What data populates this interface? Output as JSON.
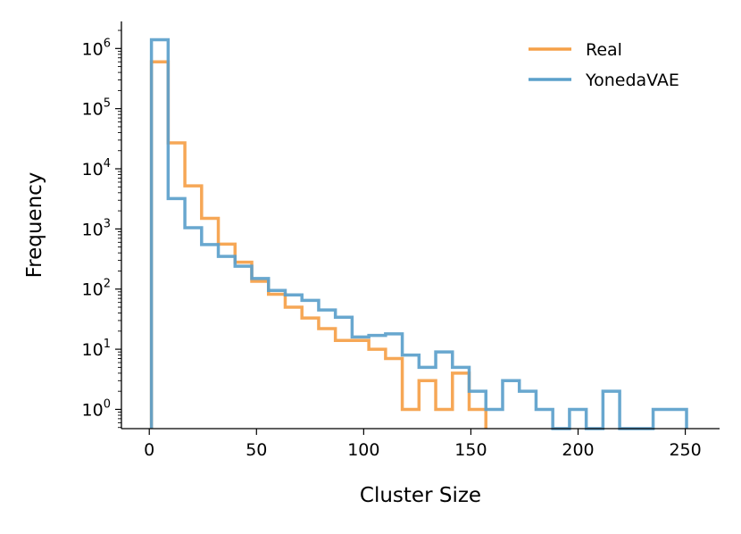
{
  "chart_data": {
    "type": "histogram-step",
    "xlabel": "Cluster Size",
    "ylabel": "Frequency",
    "xlim": [
      -13,
      266
    ],
    "ylim_log10": [
      -0.32,
      6.45
    ],
    "y_scale": "log",
    "xticks": [
      0,
      50,
      100,
      150,
      200,
      250
    ],
    "yticks": [
      {
        "base": "10",
        "exp": "0",
        "value": 1
      },
      {
        "base": "10",
        "exp": "1",
        "value": 10
      },
      {
        "base": "10",
        "exp": "2",
        "value": 100
      },
      {
        "base": "10",
        "exp": "3",
        "value": 1000
      },
      {
        "base": "10",
        "exp": "4",
        "value": 10000
      },
      {
        "base": "10",
        "exp": "5",
        "value": 100000
      },
      {
        "base": "10",
        "exp": "6",
        "value": 1000000
      }
    ],
    "legend": {
      "placement": "top-right"
    },
    "series": [
      {
        "name": "Real",
        "color": "#f5a048",
        "bins": [
          {
            "x0": 1,
            "x1": 8.8,
            "y": 600000
          },
          {
            "x0": 8.8,
            "x1": 16.6,
            "y": 27000
          },
          {
            "x0": 16.6,
            "x1": 24.4,
            "y": 5200
          },
          {
            "x0": 24.4,
            "x1": 32.2,
            "y": 1500
          },
          {
            "x0": 32.2,
            "x1": 40.0,
            "y": 560
          },
          {
            "x0": 40.0,
            "x1": 47.8,
            "y": 280
          },
          {
            "x0": 47.8,
            "x1": 55.6,
            "y": 135
          },
          {
            "x0": 55.6,
            "x1": 63.4,
            "y": 82
          },
          {
            "x0": 63.4,
            "x1": 71.2,
            "y": 50
          },
          {
            "x0": 71.2,
            "x1": 79.0,
            "y": 33
          },
          {
            "x0": 79.0,
            "x1": 86.8,
            "y": 22
          },
          {
            "x0": 86.8,
            "x1": 94.6,
            "y": 14
          },
          {
            "x0": 94.6,
            "x1": 102.4,
            "y": 14
          },
          {
            "x0": 102.4,
            "x1": 110.2,
            "y": 10
          },
          {
            "x0": 110.2,
            "x1": 118.0,
            "y": 7
          },
          {
            "x0": 118.0,
            "x1": 125.8,
            "y": 1
          },
          {
            "x0": 125.8,
            "x1": 133.6,
            "y": 3
          },
          {
            "x0": 133.6,
            "x1": 141.4,
            "y": 1
          },
          {
            "x0": 141.4,
            "x1": 149.2,
            "y": 4
          },
          {
            "x0": 149.2,
            "x1": 157.0,
            "y": 1
          }
        ]
      },
      {
        "name": "YonedaVAE",
        "color": "#5ba0cb",
        "bins": [
          {
            "x0": 1,
            "x1": 8.8,
            "y": 1400000
          },
          {
            "x0": 8.8,
            "x1": 16.6,
            "y": 3200
          },
          {
            "x0": 16.6,
            "x1": 24.4,
            "y": 1050
          },
          {
            "x0": 24.4,
            "x1": 32.2,
            "y": 550
          },
          {
            "x0": 32.2,
            "x1": 40.0,
            "y": 350
          },
          {
            "x0": 40.0,
            "x1": 47.8,
            "y": 240
          },
          {
            "x0": 47.8,
            "x1": 55.6,
            "y": 150
          },
          {
            "x0": 55.6,
            "x1": 63.4,
            "y": 95
          },
          {
            "x0": 63.4,
            "x1": 71.2,
            "y": 80
          },
          {
            "x0": 71.2,
            "x1": 79.0,
            "y": 65
          },
          {
            "x0": 79.0,
            "x1": 86.8,
            "y": 45
          },
          {
            "x0": 86.8,
            "x1": 94.6,
            "y": 34
          },
          {
            "x0": 94.6,
            "x1": 102.4,
            "y": 16
          },
          {
            "x0": 102.4,
            "x1": 110.2,
            "y": 17
          },
          {
            "x0": 110.2,
            "x1": 118.0,
            "y": 18
          },
          {
            "x0": 118.0,
            "x1": 125.8,
            "y": 8
          },
          {
            "x0": 125.8,
            "x1": 133.6,
            "y": 5
          },
          {
            "x0": 133.6,
            "x1": 141.4,
            "y": 9
          },
          {
            "x0": 141.4,
            "x1": 149.2,
            "y": 5
          },
          {
            "x0": 149.2,
            "x1": 157.0,
            "y": 2
          },
          {
            "x0": 157.0,
            "x1": 164.8,
            "y": 1
          },
          {
            "x0": 164.8,
            "x1": 172.6,
            "y": 3
          },
          {
            "x0": 172.6,
            "x1": 180.4,
            "y": 2
          },
          {
            "x0": 180.4,
            "x1": 188.2,
            "y": 1
          },
          {
            "x0": 188.2,
            "x1": 196.0,
            "y": 0
          },
          {
            "x0": 196.0,
            "x1": 203.8,
            "y": 1
          },
          {
            "x0": 203.8,
            "x1": 211.6,
            "y": 0
          },
          {
            "x0": 211.6,
            "x1": 219.4,
            "y": 2
          },
          {
            "x0": 219.4,
            "x1": 227.2,
            "y": 0
          },
          {
            "x0": 227.2,
            "x1": 235.0,
            "y": 0
          },
          {
            "x0": 235.0,
            "x1": 242.8,
            "y": 1
          },
          {
            "x0": 242.8,
            "x1": 250.6,
            "y": 1
          }
        ]
      }
    ]
  }
}
